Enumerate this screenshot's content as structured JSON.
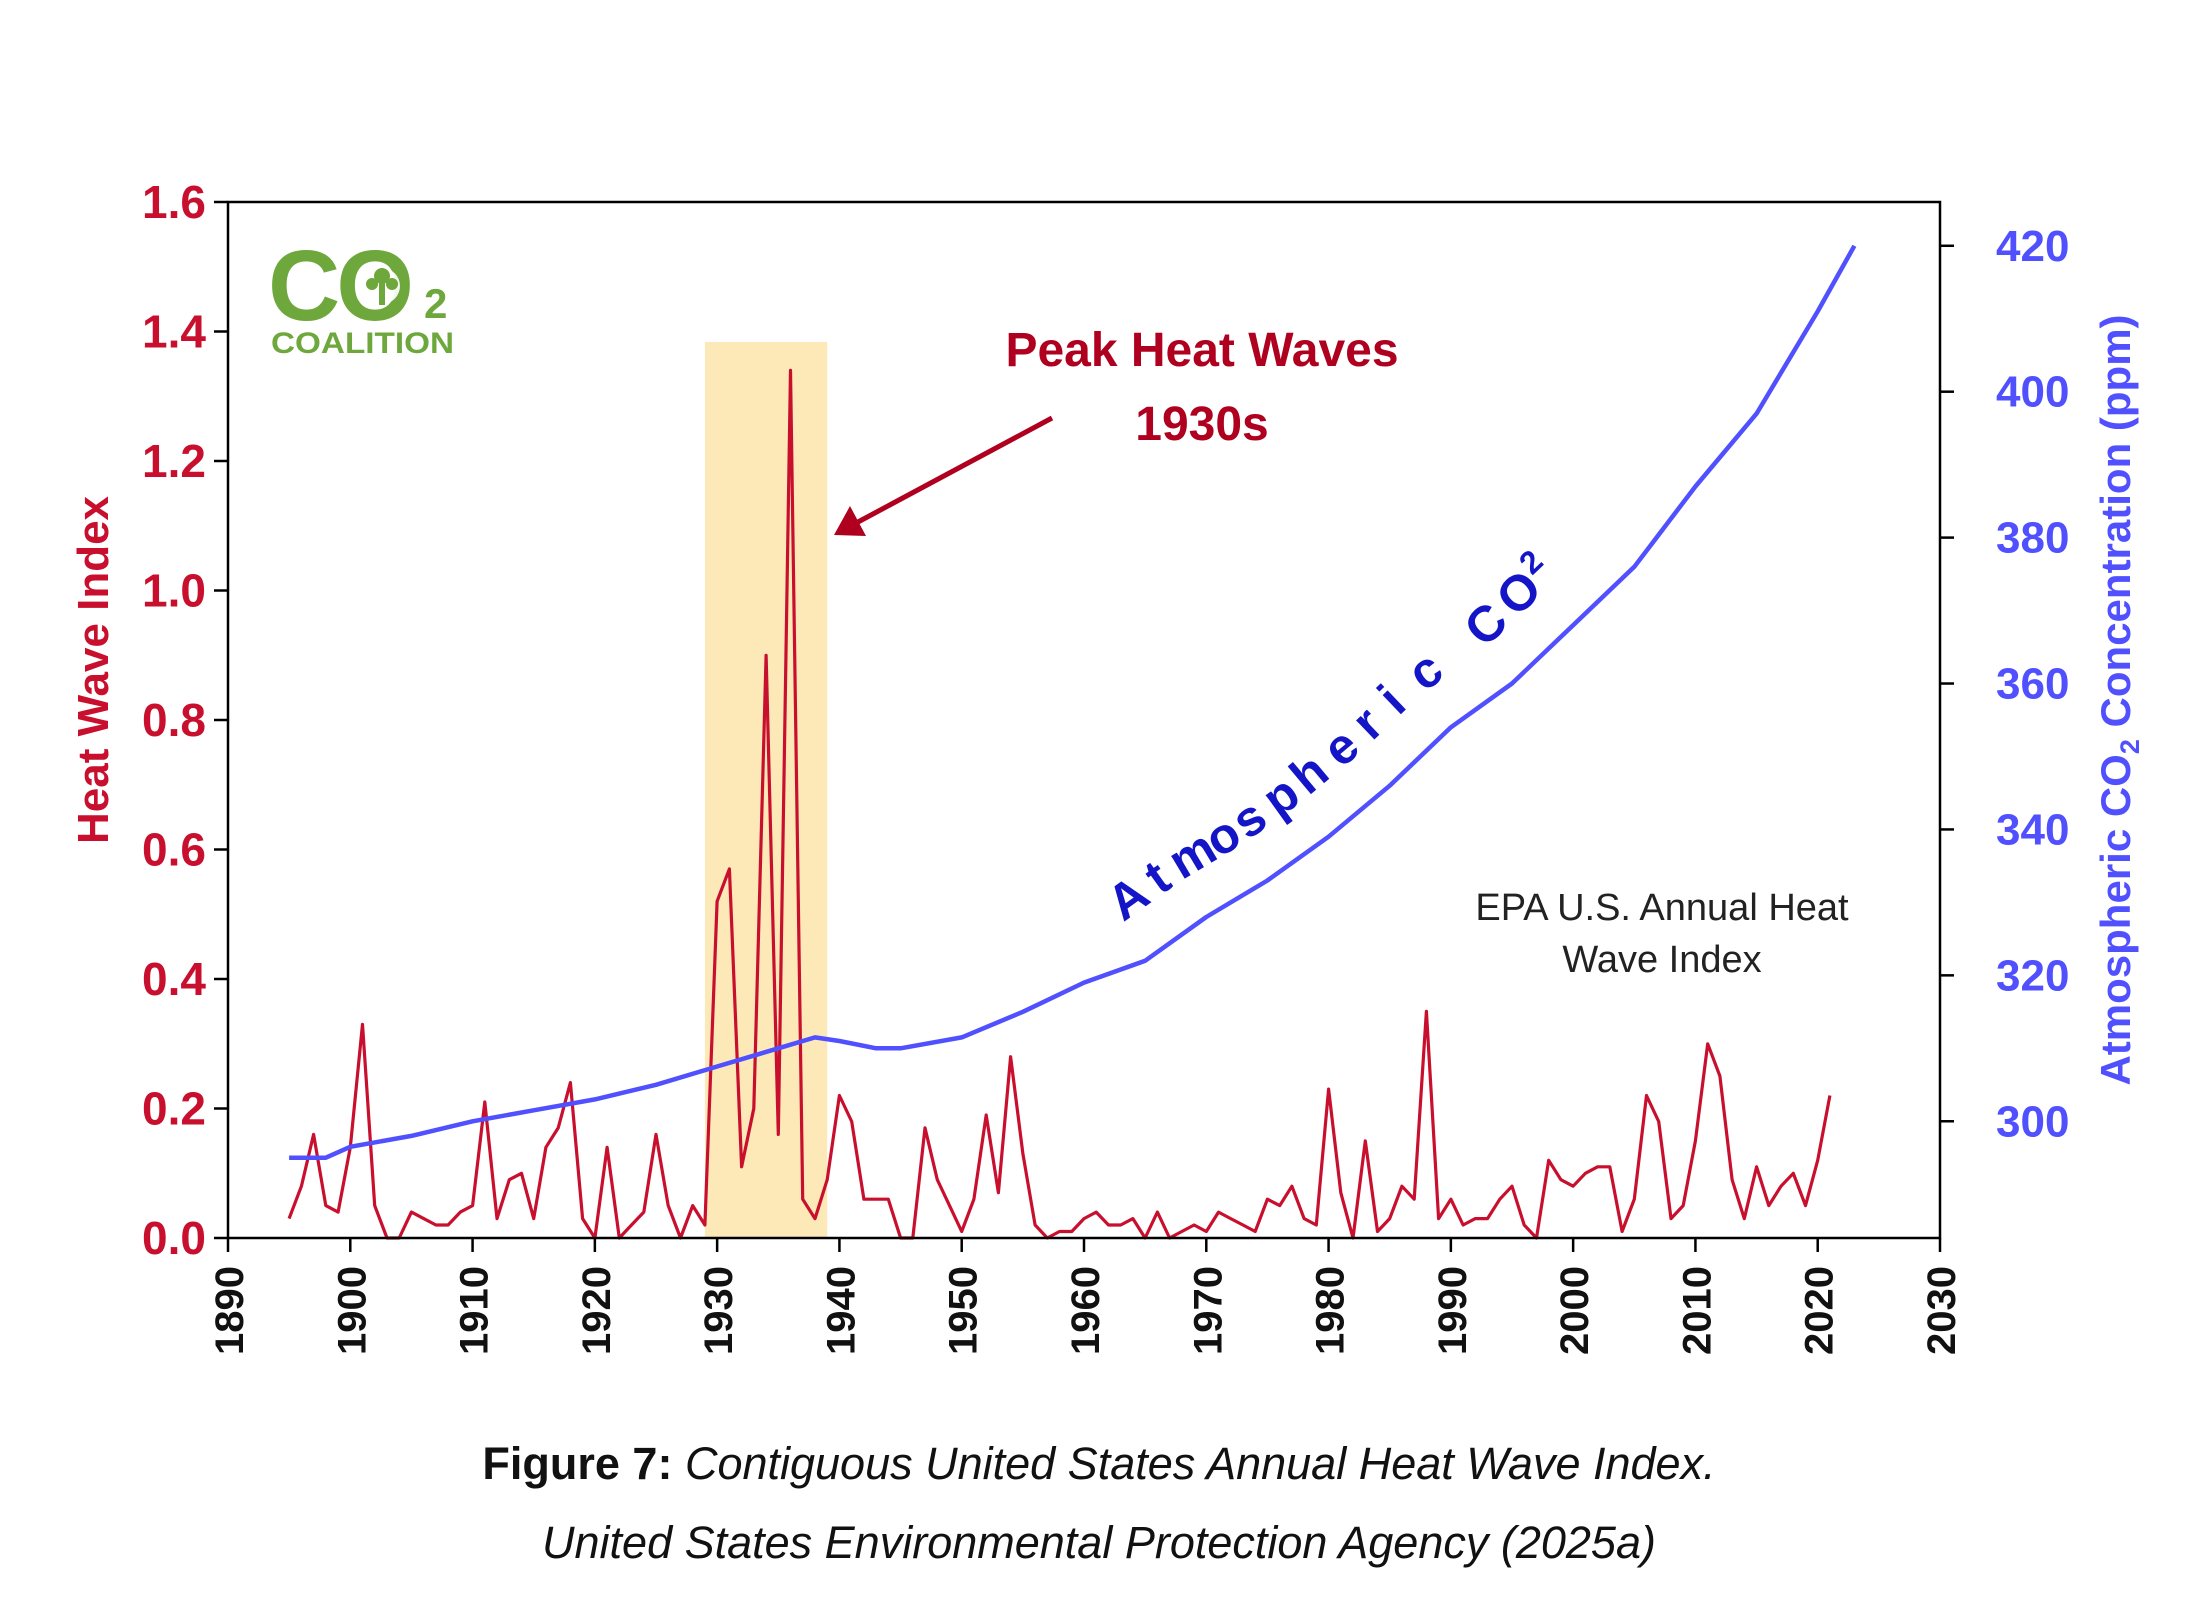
{
  "chart_data": {
    "type": "line",
    "x_axis": {
      "min": 1890,
      "max": 2030,
      "ticks": [
        "1890",
        "1900",
        "1910",
        "1920",
        "1930",
        "1940",
        "1950",
        "1960",
        "1970",
        "1980",
        "1990",
        "2000",
        "2010",
        "2020",
        "2030"
      ]
    },
    "y_left": {
      "label": "Heat Wave Index",
      "min": 0,
      "max": 1.6,
      "ticks": [
        "0.0",
        "0.2",
        "0.4",
        "0.6",
        "0.8",
        "1.0",
        "1.2",
        "1.4",
        "1.6"
      ]
    },
    "y_right": {
      "label_prefix": "Atmospheric CO",
      "label_sub": "2",
      "label_suffix": " Concentration (ppm)",
      "min": 284,
      "max": 426,
      "ticks": [
        "300",
        "320",
        "340",
        "360",
        "380",
        "400",
        "420"
      ]
    },
    "highlight": {
      "x_start": 1929,
      "x_end": 1939,
      "color": "#fde8b8"
    },
    "series": [
      {
        "name": "EPA U.S. Annual Heat Wave Index",
        "axis": "left",
        "color": "#c8102e",
        "x": [
          1895,
          1896,
          1897,
          1898,
          1899,
          1900,
          1901,
          1902,
          1903,
          1904,
          1905,
          1906,
          1907,
          1908,
          1909,
          1910,
          1911,
          1912,
          1913,
          1914,
          1915,
          1916,
          1917,
          1918,
          1919,
          1920,
          1921,
          1922,
          1923,
          1924,
          1925,
          1926,
          1927,
          1928,
          1929,
          1930,
          1931,
          1932,
          1933,
          1934,
          1935,
          1936,
          1937,
          1938,
          1939,
          1940,
          1941,
          1942,
          1943,
          1944,
          1945,
          1946,
          1947,
          1948,
          1949,
          1950,
          1951,
          1952,
          1953,
          1954,
          1955,
          1956,
          1957,
          1958,
          1959,
          1960,
          1961,
          1962,
          1963,
          1964,
          1965,
          1966,
          1967,
          1968,
          1969,
          1970,
          1971,
          1972,
          1973,
          1974,
          1975,
          1976,
          1977,
          1978,
          1979,
          1980,
          1981,
          1982,
          1983,
          1984,
          1985,
          1986,
          1987,
          1988,
          1989,
          1990,
          1991,
          1992,
          1993,
          1994,
          1995,
          1996,
          1997,
          1998,
          1999,
          2000,
          2001,
          2002,
          2003,
          2004,
          2005,
          2006,
          2007,
          2008,
          2009,
          2010,
          2011,
          2012,
          2013,
          2014,
          2015,
          2016,
          2017,
          2018,
          2019,
          2020,
          2021
        ],
        "values": [
          0.03,
          0.08,
          0.16,
          0.05,
          0.04,
          0.14,
          0.33,
          0.05,
          0.0,
          0.0,
          0.04,
          0.03,
          0.02,
          0.02,
          0.04,
          0.05,
          0.21,
          0.03,
          0.09,
          0.1,
          0.03,
          0.14,
          0.17,
          0.24,
          0.03,
          0.0,
          0.14,
          0.0,
          0.02,
          0.04,
          0.16,
          0.05,
          0.0,
          0.05,
          0.02,
          0.52,
          0.57,
          0.11,
          0.2,
          0.9,
          0.16,
          1.34,
          0.06,
          0.03,
          0.09,
          0.22,
          0.18,
          0.06,
          0.06,
          0.06,
          0.0,
          0.0,
          0.17,
          0.09,
          0.05,
          0.01,
          0.06,
          0.19,
          0.07,
          0.28,
          0.13,
          0.02,
          0.0,
          0.01,
          0.01,
          0.03,
          0.04,
          0.02,
          0.02,
          0.03,
          0.0,
          0.04,
          0.0,
          0.01,
          0.02,
          0.01,
          0.04,
          0.03,
          0.02,
          0.01,
          0.06,
          0.05,
          0.08,
          0.03,
          0.02,
          0.23,
          0.07,
          0.0,
          0.15,
          0.01,
          0.03,
          0.08,
          0.06,
          0.35,
          0.03,
          0.06,
          0.02,
          0.03,
          0.03,
          0.06,
          0.08,
          0.02,
          0.0,
          0.12,
          0.09,
          0.08,
          0.1,
          0.11,
          0.11,
          0.01,
          0.06,
          0.22,
          0.18,
          0.03,
          0.05,
          0.15,
          0.3,
          0.25,
          0.09,
          0.03,
          0.11,
          0.05,
          0.08,
          0.1,
          0.05,
          0.12,
          0.22
        ]
      },
      {
        "name": "Atmospheric CO2",
        "axis": "right",
        "color": "#5050ff",
        "x": [
          1895,
          1898,
          1900,
          1905,
          1910,
          1915,
          1920,
          1925,
          1930,
          1935,
          1938,
          1940,
          1943,
          1945,
          1950,
          1955,
          1960,
          1965,
          1970,
          1975,
          1980,
          1985,
          1990,
          1995,
          2000,
          2005,
          2010,
          2015,
          2020,
          2023
        ],
        "values": [
          295,
          295,
          296.5,
          298,
          300,
          301.5,
          303,
          305,
          307.5,
          310,
          311.5,
          311,
          310,
          310,
          311.5,
          315,
          319,
          322,
          328,
          333,
          339,
          346,
          354,
          360,
          368,
          376,
          387,
          397,
          411,
          420
        ]
      }
    ],
    "annotations": {
      "peak_line1": "Peak Heat Waves",
      "peak_line2": "1930s",
      "co2_label_letters": [
        "A",
        "t",
        "m",
        "o",
        "s",
        "p",
        "h",
        "e",
        "r",
        "i",
        "c",
        "C",
        "O"
      ],
      "co2_label_sub": "2",
      "epa_line1": "EPA U.S. Annual Heat",
      "epa_line2": "Wave Index"
    },
    "colors": {
      "heat": "#c8102e",
      "co2": "#5050ff",
      "co2_label": "#1515c8",
      "peak_text": "#b00020",
      "logo": "#6ea83c",
      "axis": "#000000",
      "tick_text": "#111111"
    }
  },
  "logo": {
    "big": "CO",
    "sub": "2",
    "word": "COALITION"
  },
  "caption": {
    "bold": "Figure 7:",
    "line1": " Contiguous United States Annual Heat Wave Index.",
    "line2": "United States Environmental Protection Agency (2025a)"
  }
}
